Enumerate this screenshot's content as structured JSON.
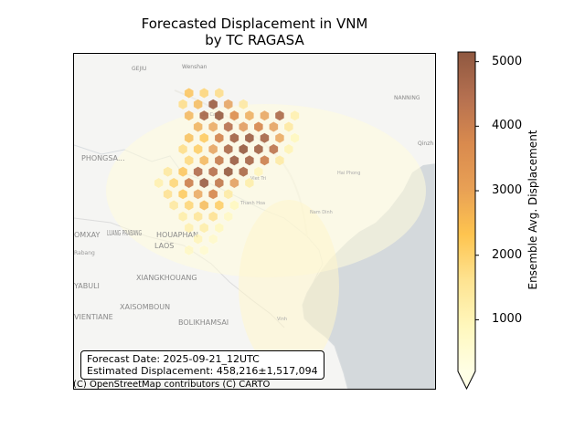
{
  "figure": {
    "title_line1": "Forecasted Displacement in VNM",
    "title_line2": "by TC RAGASA"
  },
  "info_box": {
    "forecast_date": "Forecast Date: 2025-09-21_12UTC",
    "estimated_displacement": "Estimated Displacement: 458,216±1,517,094"
  },
  "attribution": "(C) OpenStreetMap contributors (C) CARTO",
  "map_labels": [
    "GEJIU",
    "Wenshan",
    "NANNING",
    "PHONGSA...",
    "Qinzh",
    "Lao Cai",
    "Viet Tri",
    "Hai Phong",
    "Nam Dinh",
    "Thanh Hoa",
    "Vinh",
    "OMXAY",
    "LUANG PRABANG",
    "HOUAPHAN",
    "LAOS",
    "Rabang",
    "XIANGKHOUANG",
    "YABULI",
    "XAISOMBOUN",
    "VIENTIANE",
    "BOLIKHAMSAI"
  ],
  "colorbar": {
    "label": "Ensemble Avg. Displacement",
    "ticks": [
      1000,
      2000,
      3000,
      4000,
      5000
    ],
    "min": 200,
    "max": 5150,
    "colors": [
      "#ffffe5",
      "#fff7bc",
      "#fee391",
      "#fec44f",
      "#e8a055",
      "#d98a4e",
      "#b57050",
      "#8f5840"
    ]
  },
  "chart_data": {
    "type": "heatmap",
    "title": "Forecasted Displacement in VNM by TC RAGASA",
    "value_label": "Ensemble Avg. Displacement",
    "value_range": [
      200,
      5150
    ],
    "cells": [
      {
        "lon": 104.3,
        "lat": 22.6,
        "value": 4900
      },
      {
        "lon": 104.55,
        "lat": 22.6,
        "value": 3200
      },
      {
        "lon": 104.15,
        "lat": 22.4,
        "value": 4700
      },
      {
        "lon": 104.4,
        "lat": 22.4,
        "value": 5000
      },
      {
        "lon": 104.65,
        "lat": 22.4,
        "value": 3600
      },
      {
        "lon": 104.9,
        "lat": 22.4,
        "value": 2900
      },
      {
        "lon": 105.15,
        "lat": 22.4,
        "value": 3100
      },
      {
        "lon": 105.4,
        "lat": 22.4,
        "value": 4600
      },
      {
        "lon": 104.55,
        "lat": 22.2,
        "value": 4400
      },
      {
        "lon": 104.8,
        "lat": 22.2,
        "value": 3500
      },
      {
        "lon": 105.05,
        "lat": 22.2,
        "value": 3800
      },
      {
        "lon": 105.3,
        "lat": 22.2,
        "value": 3300
      },
      {
        "lon": 104.4,
        "lat": 22.0,
        "value": 3900
      },
      {
        "lon": 104.65,
        "lat": 22.0,
        "value": 4800
      },
      {
        "lon": 104.9,
        "lat": 22.0,
        "value": 4900
      },
      {
        "lon": 105.15,
        "lat": 22.0,
        "value": 4700
      },
      {
        "lon": 105.4,
        "lat": 22.0,
        "value": 3000
      },
      {
        "lon": 104.55,
        "lat": 21.8,
        "value": 4600
      },
      {
        "lon": 104.8,
        "lat": 21.8,
        "value": 5000
      },
      {
        "lon": 105.05,
        "lat": 21.8,
        "value": 4800
      },
      {
        "lon": 105.3,
        "lat": 21.8,
        "value": 4300
      },
      {
        "lon": 104.4,
        "lat": 21.6,
        "value": 4100
      },
      {
        "lon": 104.65,
        "lat": 21.6,
        "value": 4900
      },
      {
        "lon": 104.9,
        "lat": 21.6,
        "value": 4700
      },
      {
        "lon": 105.15,
        "lat": 21.6,
        "value": 4000
      },
      {
        "lon": 104.05,
        "lat": 21.4,
        "value": 4500
      },
      {
        "lon": 104.3,
        "lat": 21.4,
        "value": 4400
      },
      {
        "lon": 104.55,
        "lat": 21.4,
        "value": 5000
      },
      {
        "lon": 104.8,
        "lat": 21.4,
        "value": 4600
      },
      {
        "lon": 103.9,
        "lat": 21.2,
        "value": 4000
      },
      {
        "lon": 104.15,
        "lat": 21.2,
        "value": 4900
      },
      {
        "lon": 104.4,
        "lat": 21.2,
        "value": 4200
      },
      {
        "lon": 104.65,
        "lat": 21.2,
        "value": 3400
      },
      {
        "lon": 104.05,
        "lat": 21.0,
        "value": 3000
      },
      {
        "lon": 104.3,
        "lat": 21.0,
        "value": 3800
      },
      {
        "lon": 104.15,
        "lat": 20.8,
        "value": 2600
      },
      {
        "lon": 104.4,
        "lat": 20.8,
        "value": 2200
      },
      {
        "lon": 104.3,
        "lat": 20.6,
        "value": 1700
      },
      {
        "lon": 103.9,
        "lat": 22.8,
        "value": 2400
      },
      {
        "lon": 104.15,
        "lat": 22.8,
        "value": 2000
      },
      {
        "lon": 104.4,
        "lat": 22.8,
        "value": 1800
      },
      {
        "lon": 103.8,
        "lat": 22.6,
        "value": 1800
      },
      {
        "lon": 104.05,
        "lat": 22.6,
        "value": 2600
      },
      {
        "lon": 104.8,
        "lat": 22.6,
        "value": 1500
      },
      {
        "lon": 103.9,
        "lat": 22.4,
        "value": 2700
      },
      {
        "lon": 105.65,
        "lat": 22.4,
        "value": 1200
      },
      {
        "lon": 104.05,
        "lat": 22.2,
        "value": 2800
      },
      {
        "lon": 104.3,
        "lat": 22.2,
        "value": 3000
      },
      {
        "lon": 105.55,
        "lat": 22.2,
        "value": 1500
      },
      {
        "lon": 103.9,
        "lat": 22.0,
        "value": 2500
      },
      {
        "lon": 104.15,
        "lat": 22.0,
        "value": 2300
      },
      {
        "lon": 105.65,
        "lat": 22.0,
        "value": 900
      },
      {
        "lon": 103.8,
        "lat": 21.8,
        "value": 1800
      },
      {
        "lon": 104.05,
        "lat": 21.8,
        "value": 2200
      },
      {
        "lon": 104.3,
        "lat": 21.8,
        "value": 3200
      },
      {
        "lon": 105.55,
        "lat": 21.8,
        "value": 1100
      },
      {
        "lon": 103.9,
        "lat": 21.6,
        "value": 1900
      },
      {
        "lon": 104.15,
        "lat": 21.6,
        "value": 2700
      },
      {
        "lon": 105.4,
        "lat": 21.6,
        "value": 1400
      },
      {
        "lon": 103.55,
        "lat": 21.4,
        "value": 1500
      },
      {
        "lon": 103.8,
        "lat": 21.4,
        "value": 2400
      },
      {
        "lon": 105.05,
        "lat": 21.4,
        "value": 1000
      },
      {
        "lon": 103.4,
        "lat": 21.2,
        "value": 1200
      },
      {
        "lon": 103.65,
        "lat": 21.2,
        "value": 2000
      },
      {
        "lon": 104.9,
        "lat": 21.2,
        "value": 1300
      },
      {
        "lon": 103.55,
        "lat": 21.0,
        "value": 1700
      },
      {
        "lon": 103.8,
        "lat": 21.0,
        "value": 2300
      },
      {
        "lon": 104.55,
        "lat": 21.0,
        "value": 1400
      },
      {
        "lon": 103.65,
        "lat": 20.8,
        "value": 1500
      },
      {
        "lon": 103.9,
        "lat": 20.8,
        "value": 2000
      },
      {
        "lon": 104.65,
        "lat": 20.8,
        "value": 900
      },
      {
        "lon": 103.8,
        "lat": 20.6,
        "value": 1300
      },
      {
        "lon": 104.05,
        "lat": 20.6,
        "value": 1600
      },
      {
        "lon": 104.55,
        "lat": 20.6,
        "value": 800
      },
      {
        "lon": 103.9,
        "lat": 20.4,
        "value": 1200
      },
      {
        "lon": 104.15,
        "lat": 20.4,
        "value": 1300
      },
      {
        "lon": 104.4,
        "lat": 20.4,
        "value": 900
      },
      {
        "lon": 104.05,
        "lat": 20.2,
        "value": 1000
      },
      {
        "lon": 104.3,
        "lat": 20.2,
        "value": 700
      },
      {
        "lon": 103.9,
        "lat": 20.0,
        "value": 800
      },
      {
        "lon": 104.15,
        "lat": 20.0,
        "value": 600
      }
    ]
  }
}
